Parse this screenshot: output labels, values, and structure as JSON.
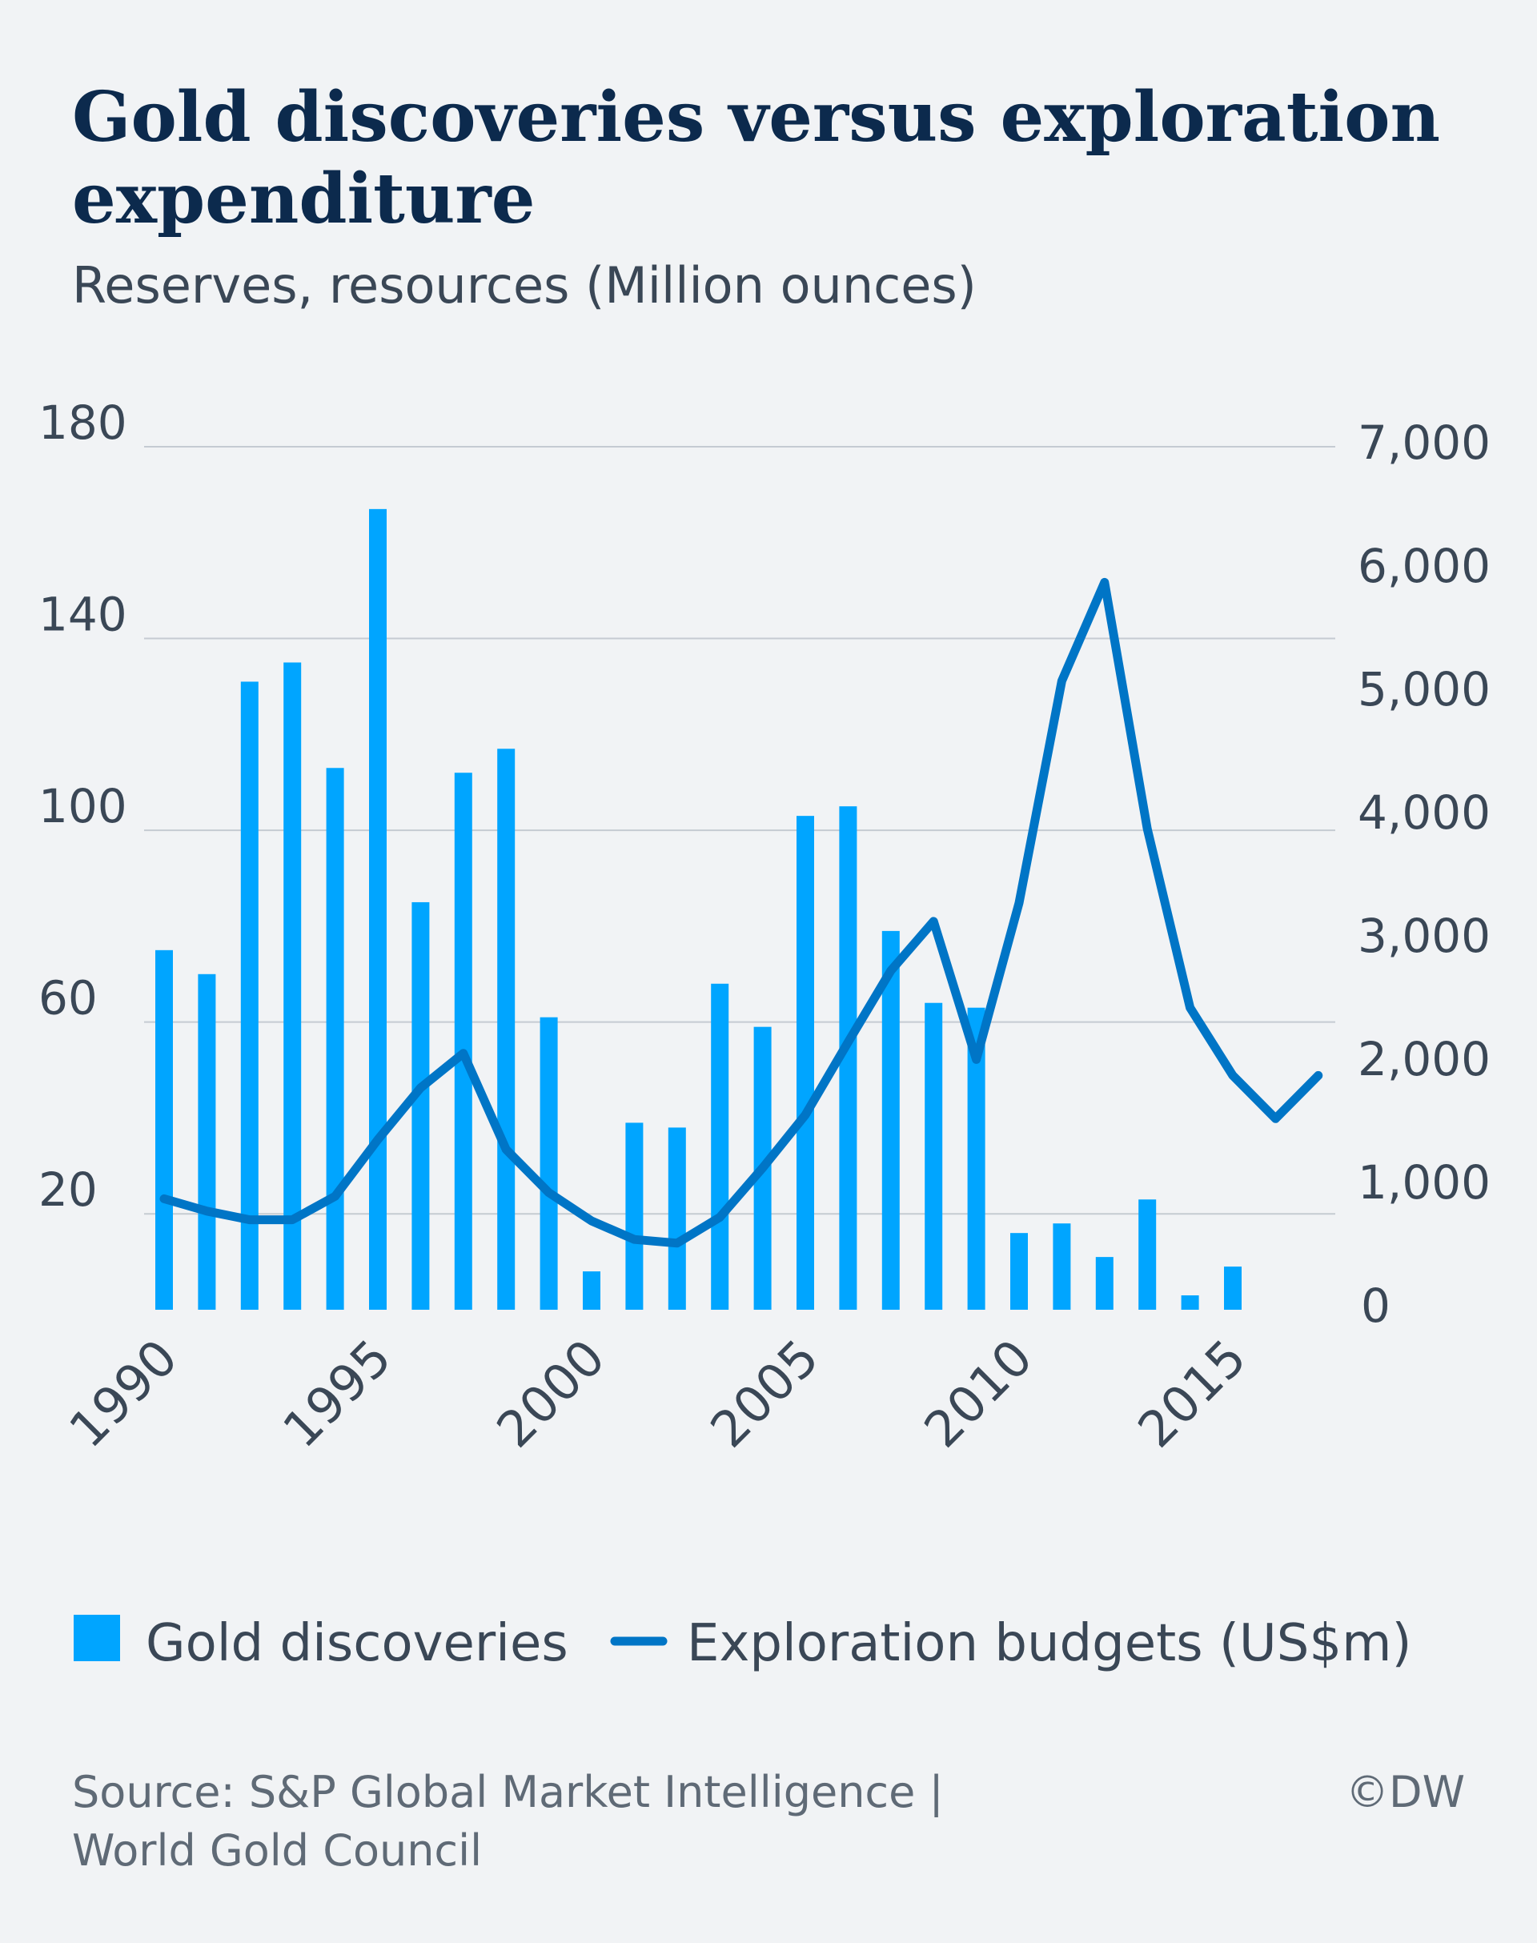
{
  "title_line1": "Gold discoveries versus exploration",
  "title_line2": "expenditure",
  "subtitle": "Reserves, resources (Million ounces)",
  "legend": {
    "bars_label": "Gold discoveries",
    "line_label": "Exploration budgets (US$m)"
  },
  "source": {
    "line1": "Source: S&P Global Market Intelligence |",
    "line2": "World Gold Council",
    "credit": "©DW"
  },
  "colors": {
    "bars": "#00a5ff",
    "line": "#0075c6",
    "gridline": "#c5cbd2",
    "text": "#3a4756",
    "title": "#0c2a4d",
    "background": "#f1f3f5"
  },
  "chart_data": {
    "type": "bar+line",
    "x": [
      1990,
      1991,
      1992,
      1993,
      1994,
      1995,
      1996,
      1997,
      1998,
      1999,
      2000,
      2001,
      2002,
      2003,
      2004,
      2005,
      2006,
      2007,
      2008,
      2009,
      2010,
      2011,
      2012,
      2013,
      2014,
      2015,
      2016,
      2017
    ],
    "x_tick_labels": [
      "1990",
      "1995",
      "2000",
      "2005",
      "2010",
      "2015"
    ],
    "x_tick_values": [
      1990,
      1995,
      2000,
      2005,
      2010,
      2015
    ],
    "bars": {
      "name": "Gold discoveries",
      "axis": "left",
      "values": [
        75,
        70,
        131,
        135,
        113,
        167,
        85,
        112,
        117,
        61,
        8,
        39,
        38,
        68,
        59,
        103,
        105,
        79,
        64,
        63,
        16,
        18,
        11,
        23,
        3,
        9,
        null,
        null
      ]
    },
    "line": {
      "name": "Exploration budgets (US$m)",
      "axis": "right",
      "values": [
        900,
        800,
        730,
        730,
        920,
        1380,
        1800,
        2080,
        1300,
        950,
        720,
        570,
        540,
        750,
        1150,
        1580,
        2170,
        2750,
        3150,
        2030,
        3300,
        5100,
        5900,
        3900,
        2450,
        1900,
        1550,
        1900
      ]
    },
    "left_axis": {
      "ylim": [
        0,
        180
      ],
      "ticks": [
        20,
        60,
        100,
        140,
        180
      ],
      "tick_labels": [
        "20",
        "60",
        "100",
        "140",
        "180"
      ]
    },
    "right_axis": {
      "ylim": [
        0,
        7000
      ],
      "ticks": [
        0,
        1000,
        2000,
        3000,
        4000,
        5000,
        6000,
        7000
      ],
      "tick_labels": [
        "0",
        "1,000",
        "2,000",
        "3,000",
        "4,000",
        "5,000",
        "6,000",
        "7,000"
      ]
    },
    "grid": true,
    "legend_position": "bottom-left"
  }
}
